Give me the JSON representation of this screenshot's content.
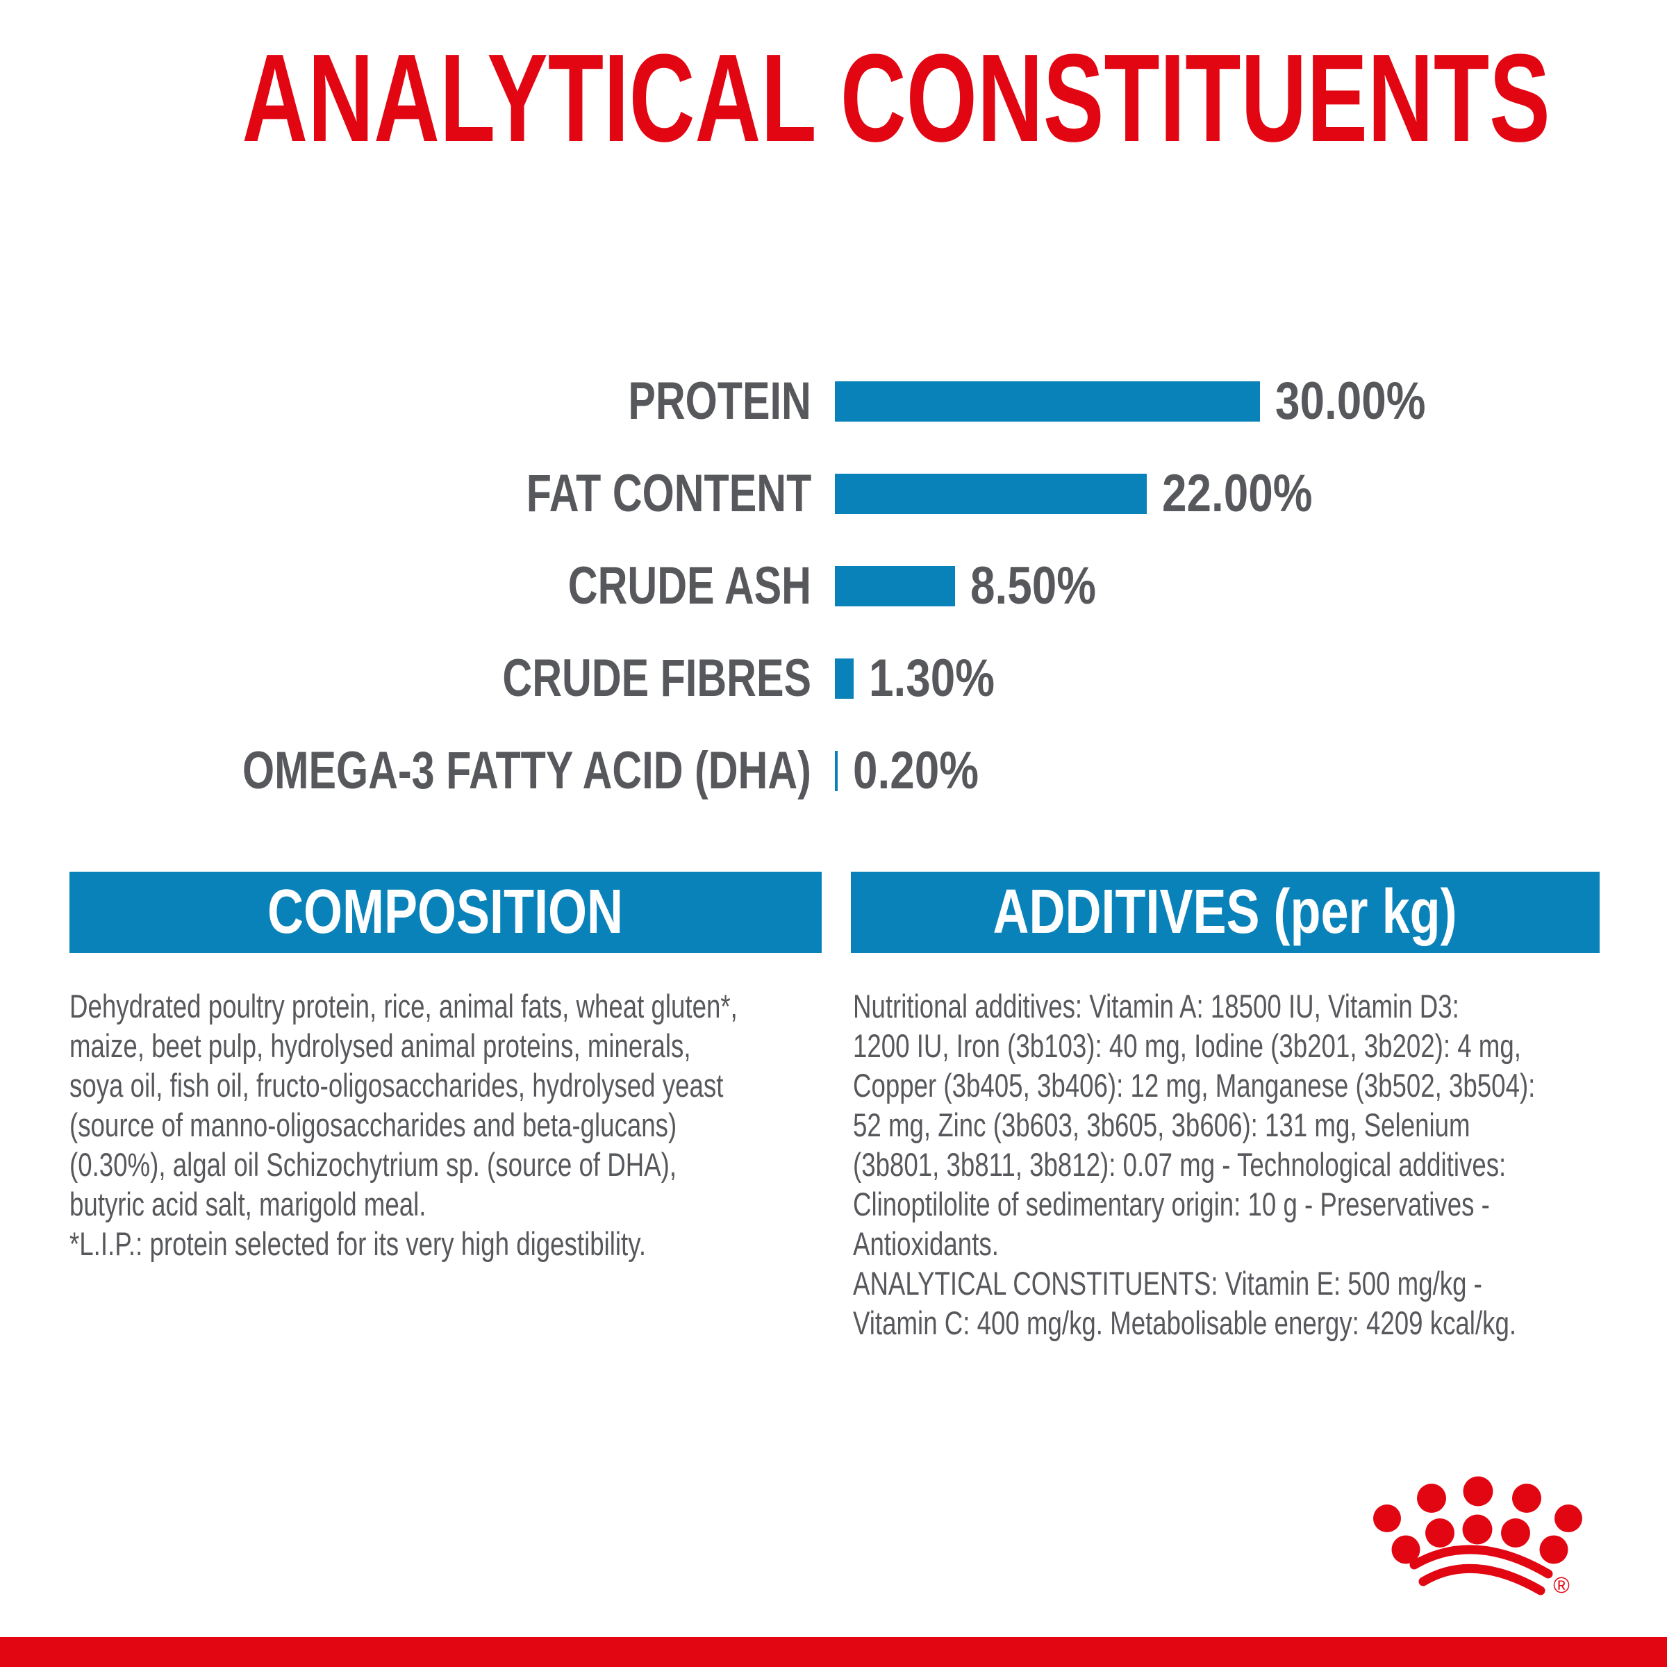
{
  "page_title": "ANALYTICAL CONSTITUENTS",
  "chart_data": {
    "type": "bar",
    "orientation": "horizontal",
    "title": "ANALYTICAL CONSTITUENTS",
    "categories": [
      "PROTEIN",
      "FAT CONTENT",
      "CRUDE ASH",
      "CRUDE FIBRES",
      "OMEGA-3 FATTY ACID (DHA)"
    ],
    "values": [
      30.0,
      22.0,
      8.5,
      1.3,
      0.2
    ],
    "value_labels": [
      "30.00%",
      "22.00%",
      "8.50%",
      "1.30%",
      "0.20%"
    ],
    "unit": "%",
    "xlim": [
      0,
      30
    ],
    "grid": false,
    "legend": false,
    "bar_color": "#0982ba",
    "label_color": "#57585c"
  },
  "sections": {
    "composition": {
      "header": "COMPOSITION",
      "lines": [
        "Dehydrated poultry protein, rice, animal fats, wheat gluten*,",
        "maize, beet pulp, hydrolysed animal proteins, minerals,",
        "soya oil, fish oil, fructo-oligosaccharides, hydrolysed yeast",
        "(source of manno-oligosaccharides and beta-glucans)",
        "(0.30%), algal oil Schizochytrium sp. (source of DHA),",
        "butyric acid salt, marigold meal.",
        "*L.I.P.: protein selected for its very high digestibility."
      ]
    },
    "additives": {
      "header": "ADDITIVES (per kg)",
      "lines": [
        "Nutritional additives: Vitamin A: 18500 IU, Vitamin D3:",
        "1200 IU, Iron (3b103): 40 mg, Iodine (3b201, 3b202): 4 mg,",
        "Copper (3b405, 3b406): 12 mg, Manganese (3b502, 3b504):",
        "52 mg, Zinc (3b603, 3b605, 3b606): 131 mg, Selenium",
        "(3b801, 3b811, 3b812): 0.07 mg - Technological additives:",
        "Clinoptilolite of sedimentary origin: 10 g - Preservatives -",
        "Antioxidants.",
        "ANALYTICAL CONSTITUENTS: Vitamin E: 500 mg/kg -",
        "Vitamin C: 400 mg/kg. Metabolisable energy: 4209 kcal/kg."
      ]
    }
  },
  "branding": {
    "logo": "royal-canin-crown",
    "registered_mark": "®"
  },
  "colors": {
    "brand_red": "#e20613",
    "bar_blue": "#0982ba",
    "text_gray": "#57585c",
    "header_text": "#ffffff",
    "background": "#ffffff"
  }
}
